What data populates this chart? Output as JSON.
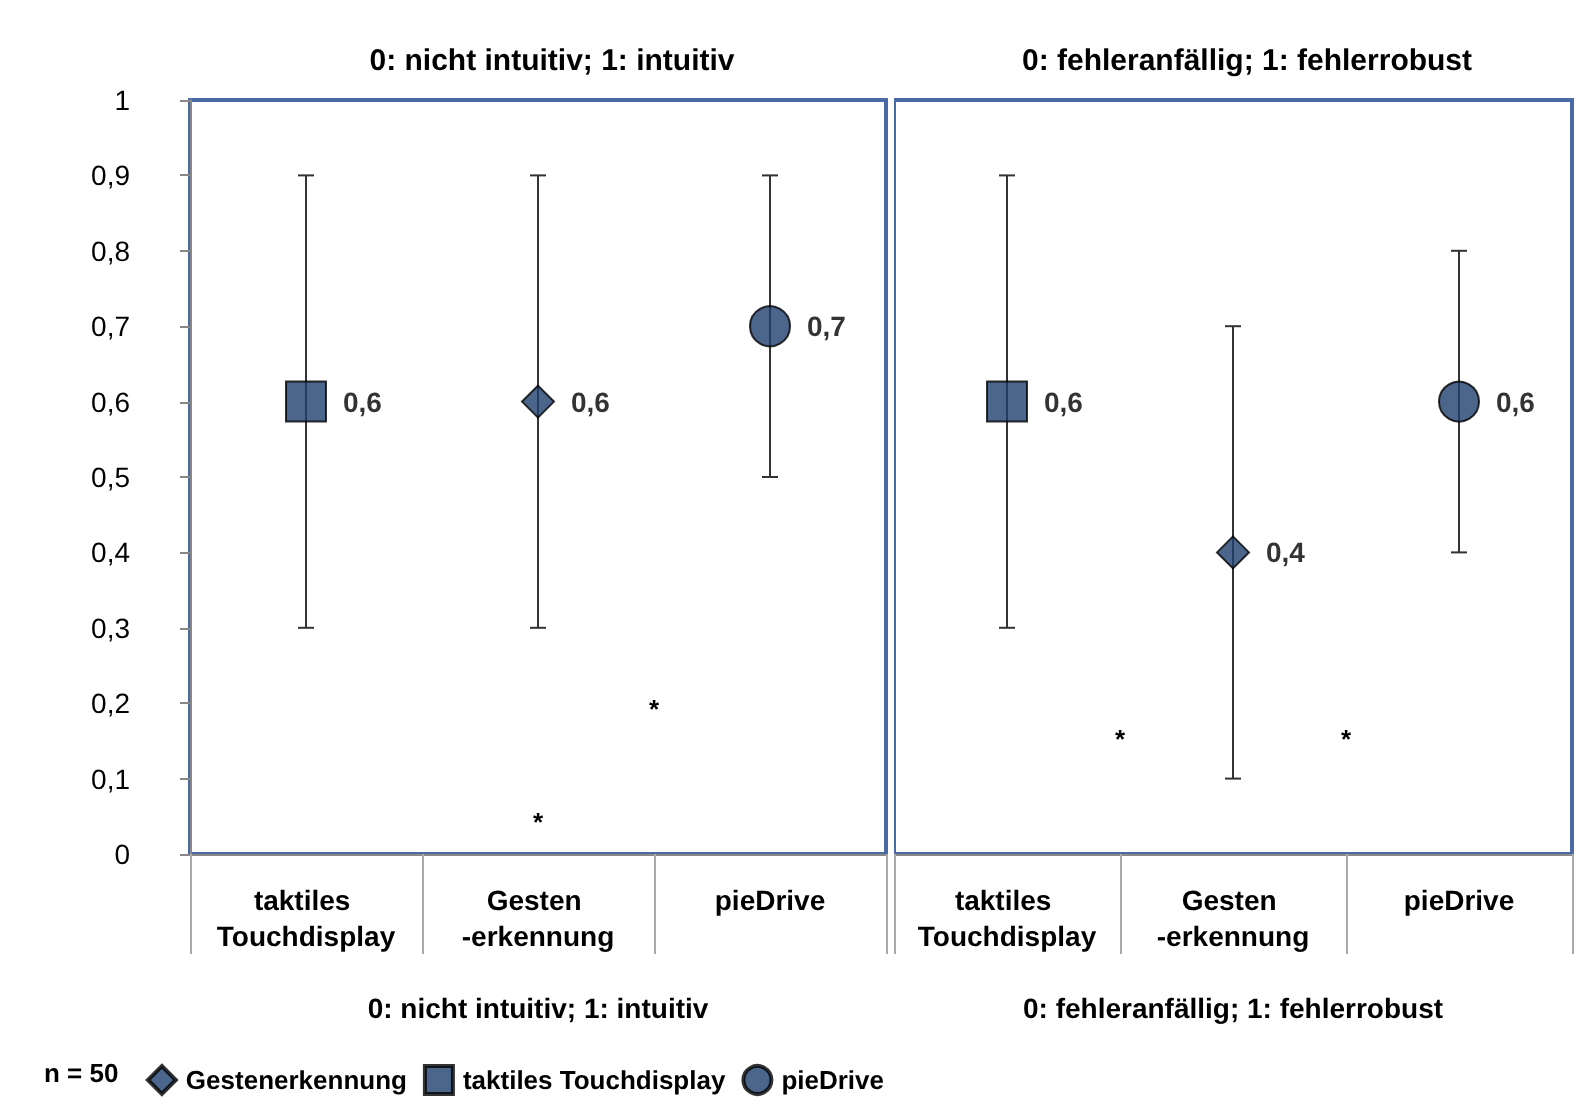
{
  "chart_data": [
    {
      "type": "scatter",
      "title": "0: nicht intuitiv; 1: intuitiv",
      "xlabel": "0: nicht intuitiv; 1: intuitiv",
      "categories": [
        "taktiles Touchdisplay",
        "Gesten -erkennung",
        "pieDrive"
      ],
      "ylim": [
        0,
        1
      ],
      "yticks": [
        0,
        {
          "value": 0.1,
          "label": "0,1"
        },
        {
          "value": 0.2,
          "label": "0,2"
        },
        {
          "value": 0.3,
          "label": "0,3"
        },
        {
          "value": 0.4,
          "label": "0,4"
        },
        {
          "value": 0.5,
          "label": "0,5"
        },
        {
          "value": 0.6,
          "label": "0,6"
        },
        {
          "value": 0.7,
          "label": "0,7"
        },
        {
          "value": 0.8,
          "label": "0,8"
        },
        {
          "value": 0.9,
          "label": "0,9"
        },
        1
      ],
      "grid": false,
      "legend": "bottom",
      "annotations": [
        "*",
        "*",
        "n = 50"
      ],
      "series": [
        {
          "name": "Gestenerkennung",
          "color": "#1f3f6e",
          "marker": "diamond",
          "values": [
            null,
            0.6,
            null
          ],
          "errors": [
            null,
            [
              0.3,
              0.9
            ],
            null
          ],
          "value_labels": [
            null,
            "0,6",
            null
          ]
        },
        {
          "name": "taktiles Touchdisplay",
          "color": "#1f3f6e",
          "marker": "square",
          "values": [
            0.6,
            null,
            null
          ],
          "errors": [
            [
              0.3,
              0.9
            ],
            null,
            null
          ],
          "value_labels": [
            "0,6",
            null,
            null
          ]
        },
        {
          "name": "pieDrive",
          "color": "#1f3f6e",
          "marker": "circle",
          "values": [
            null,
            null,
            0.7
          ],
          "errors": [
            null,
            null,
            [
              0.5,
              0.9
            ]
          ],
          "value_labels": [
            null,
            null,
            "0,7"
          ]
        }
      ]
    },
    {
      "type": "scatter",
      "title": "0: fehleranfällig; 1: fehlerrobust",
      "xlabel": "0: fehleranfällig; 1: fehlerrobust",
      "categories": [
        "taktiles Touchdisplay",
        "Gesten -erkennung",
        "pieDrive"
      ],
      "ylim": [
        0,
        1
      ],
      "tick_labels": "x",
      "grid": false,
      "annotations": [
        "*",
        "*"
      ],
      "series": [
        {
          "color": "#1f3f6e",
          "marker": "diamond",
          "values": [
            null,
            0.4,
            null
          ],
          "errors": [
            null,
            [
              0.1,
              0.7
            ],
            null
          ],
          "value_labels": [
            null,
            "0,4",
            null
          ]
        },
        {
          "color": "#1f3f6e",
          "marker": "square",
          "values": [
            0.6,
            null,
            null
          ],
          "errors": [
            [
              0.3,
              0.9
            ],
            null,
            null
          ],
          "value_labels": [
            "0,6",
            null,
            null
          ]
        },
        {
          "color": "#1f3f6e",
          "marker": "circle",
          "values": [
            null,
            null,
            0.6
          ],
          "errors": [
            null,
            null,
            [
              0.4,
              0.8
            ]
          ],
          "value_labels": [
            null,
            null,
            "0,6"
          ]
        }
      ]
    }
  ]
}
